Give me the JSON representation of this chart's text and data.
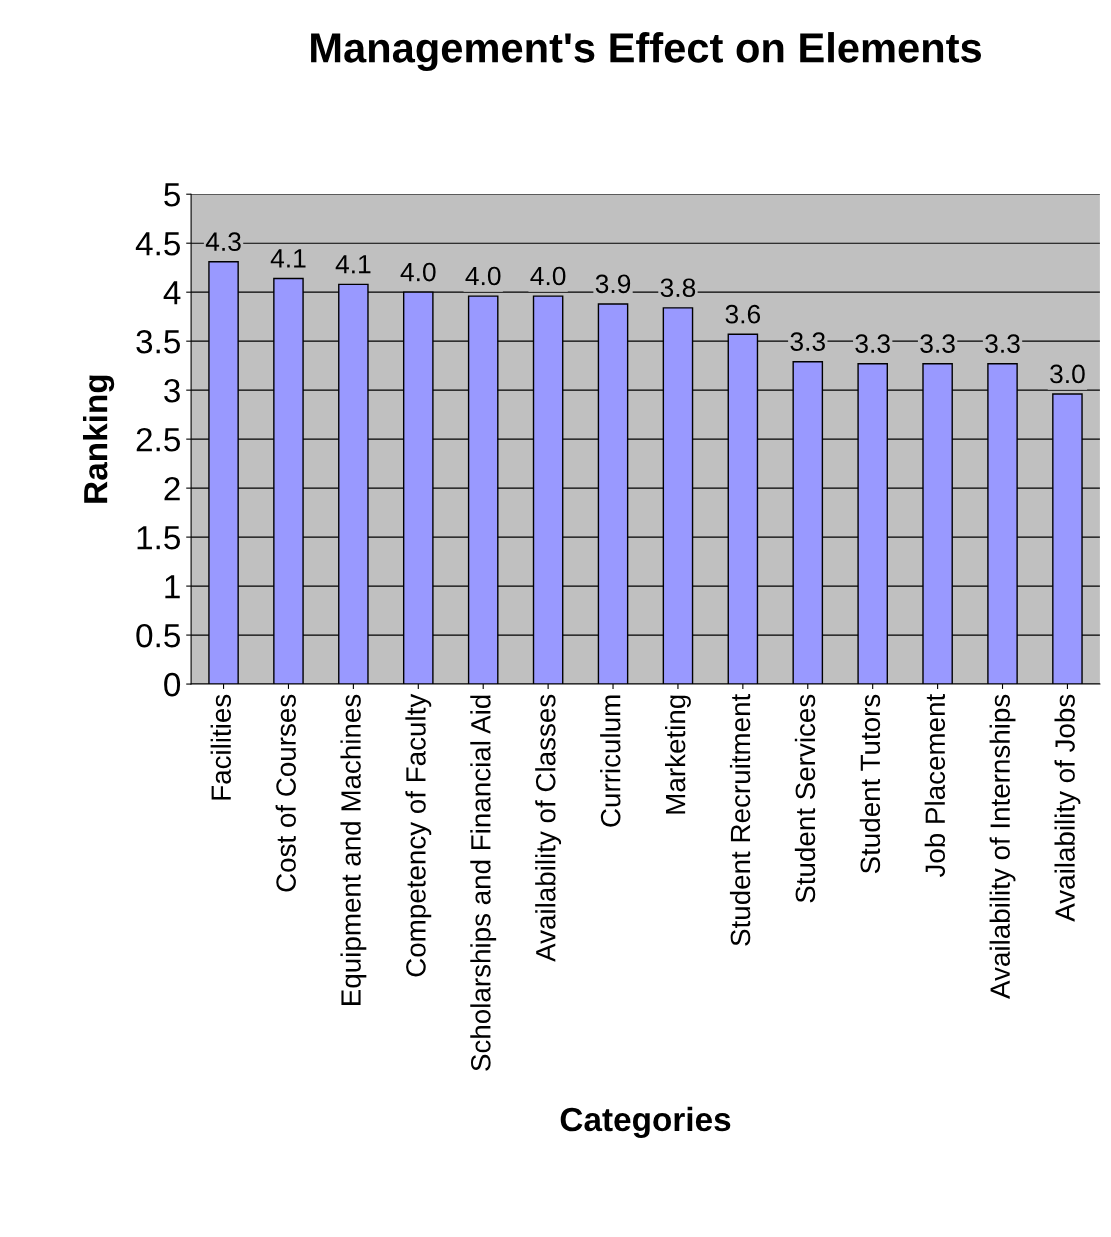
{
  "chart_data": {
    "type": "bar",
    "title": "Management's Effect on Elements",
    "xlabel": "Categories",
    "ylabel": "Ranking",
    "categories": [
      "Facilities",
      "Cost of Courses",
      "Equipment and Machines",
      "Competency of Faculty",
      "Scholarships and Financial Aid",
      "Availability of Classes",
      "Curriculum",
      "Marketing",
      "Student Recruitment",
      "Student Services",
      "Student Tutors",
      "Job Placement",
      "Availability of Internships",
      "Availability of Jobs"
    ],
    "values": [
      4.31,
      4.14,
      4.08,
      4.0,
      3.96,
      3.96,
      3.88,
      3.84,
      3.57,
      3.29,
      3.27,
      3.27,
      3.27,
      2.96
    ],
    "value_labels": [
      "4.3",
      "4.1",
      "4.1",
      "4.0",
      "4.0",
      "4.0",
      "3.9",
      "3.8",
      "3.6",
      "3.3",
      "3.3",
      "3.3",
      "3.3",
      "3.0"
    ],
    "color": "#9999ff",
    "ylim": [
      0,
      5
    ],
    "yticks": [
      0,
      0.5,
      1,
      1.5,
      2,
      2.5,
      3,
      3.5,
      4,
      4.5,
      5
    ],
    "grid": "y"
  }
}
